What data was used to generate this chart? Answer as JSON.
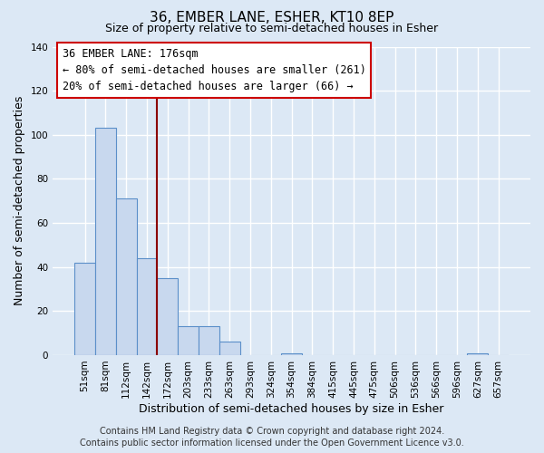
{
  "title": "36, EMBER LANE, ESHER, KT10 8EP",
  "subtitle": "Size of property relative to semi-detached houses in Esher",
  "xlabel": "Distribution of semi-detached houses by size in Esher",
  "ylabel": "Number of semi-detached properties",
  "bar_labels": [
    "51sqm",
    "81sqm",
    "112sqm",
    "142sqm",
    "172sqm",
    "203sqm",
    "233sqm",
    "263sqm",
    "293sqm",
    "324sqm",
    "354sqm",
    "384sqm",
    "415sqm",
    "445sqm",
    "475sqm",
    "506sqm",
    "536sqm",
    "566sqm",
    "596sqm",
    "627sqm",
    "657sqm"
  ],
  "bar_values": [
    42,
    103,
    71,
    44,
    35,
    13,
    13,
    6,
    0,
    0,
    1,
    0,
    0,
    0,
    0,
    0,
    0,
    0,
    0,
    1,
    0
  ],
  "bar_color": "#c8d8ee",
  "bar_edge_color": "#5b8fc9",
  "highlight_line_color": "#8b0000",
  "red_line_x": 3.5,
  "annotation_title": "36 EMBER LANE: 176sqm",
  "annotation_line1": "← 80% of semi-detached houses are smaller (261)",
  "annotation_line2": "20% of semi-detached houses are larger (66) →",
  "annotation_box_color": "white",
  "annotation_box_edge": "#cc0000",
  "ylim": [
    0,
    140
  ],
  "yticks": [
    0,
    20,
    40,
    60,
    80,
    100,
    120,
    140
  ],
  "footer1": "Contains HM Land Registry data © Crown copyright and database right 2024.",
  "footer2": "Contains public sector information licensed under the Open Government Licence v3.0.",
  "bg_color": "#dce8f5",
  "plot_bg_color": "#dce8f5",
  "grid_color": "white",
  "title_fontsize": 11,
  "subtitle_fontsize": 9,
  "axis_label_fontsize": 9,
  "tick_fontsize": 7.5,
  "annotation_fontsize": 8.5,
  "footer_fontsize": 7
}
